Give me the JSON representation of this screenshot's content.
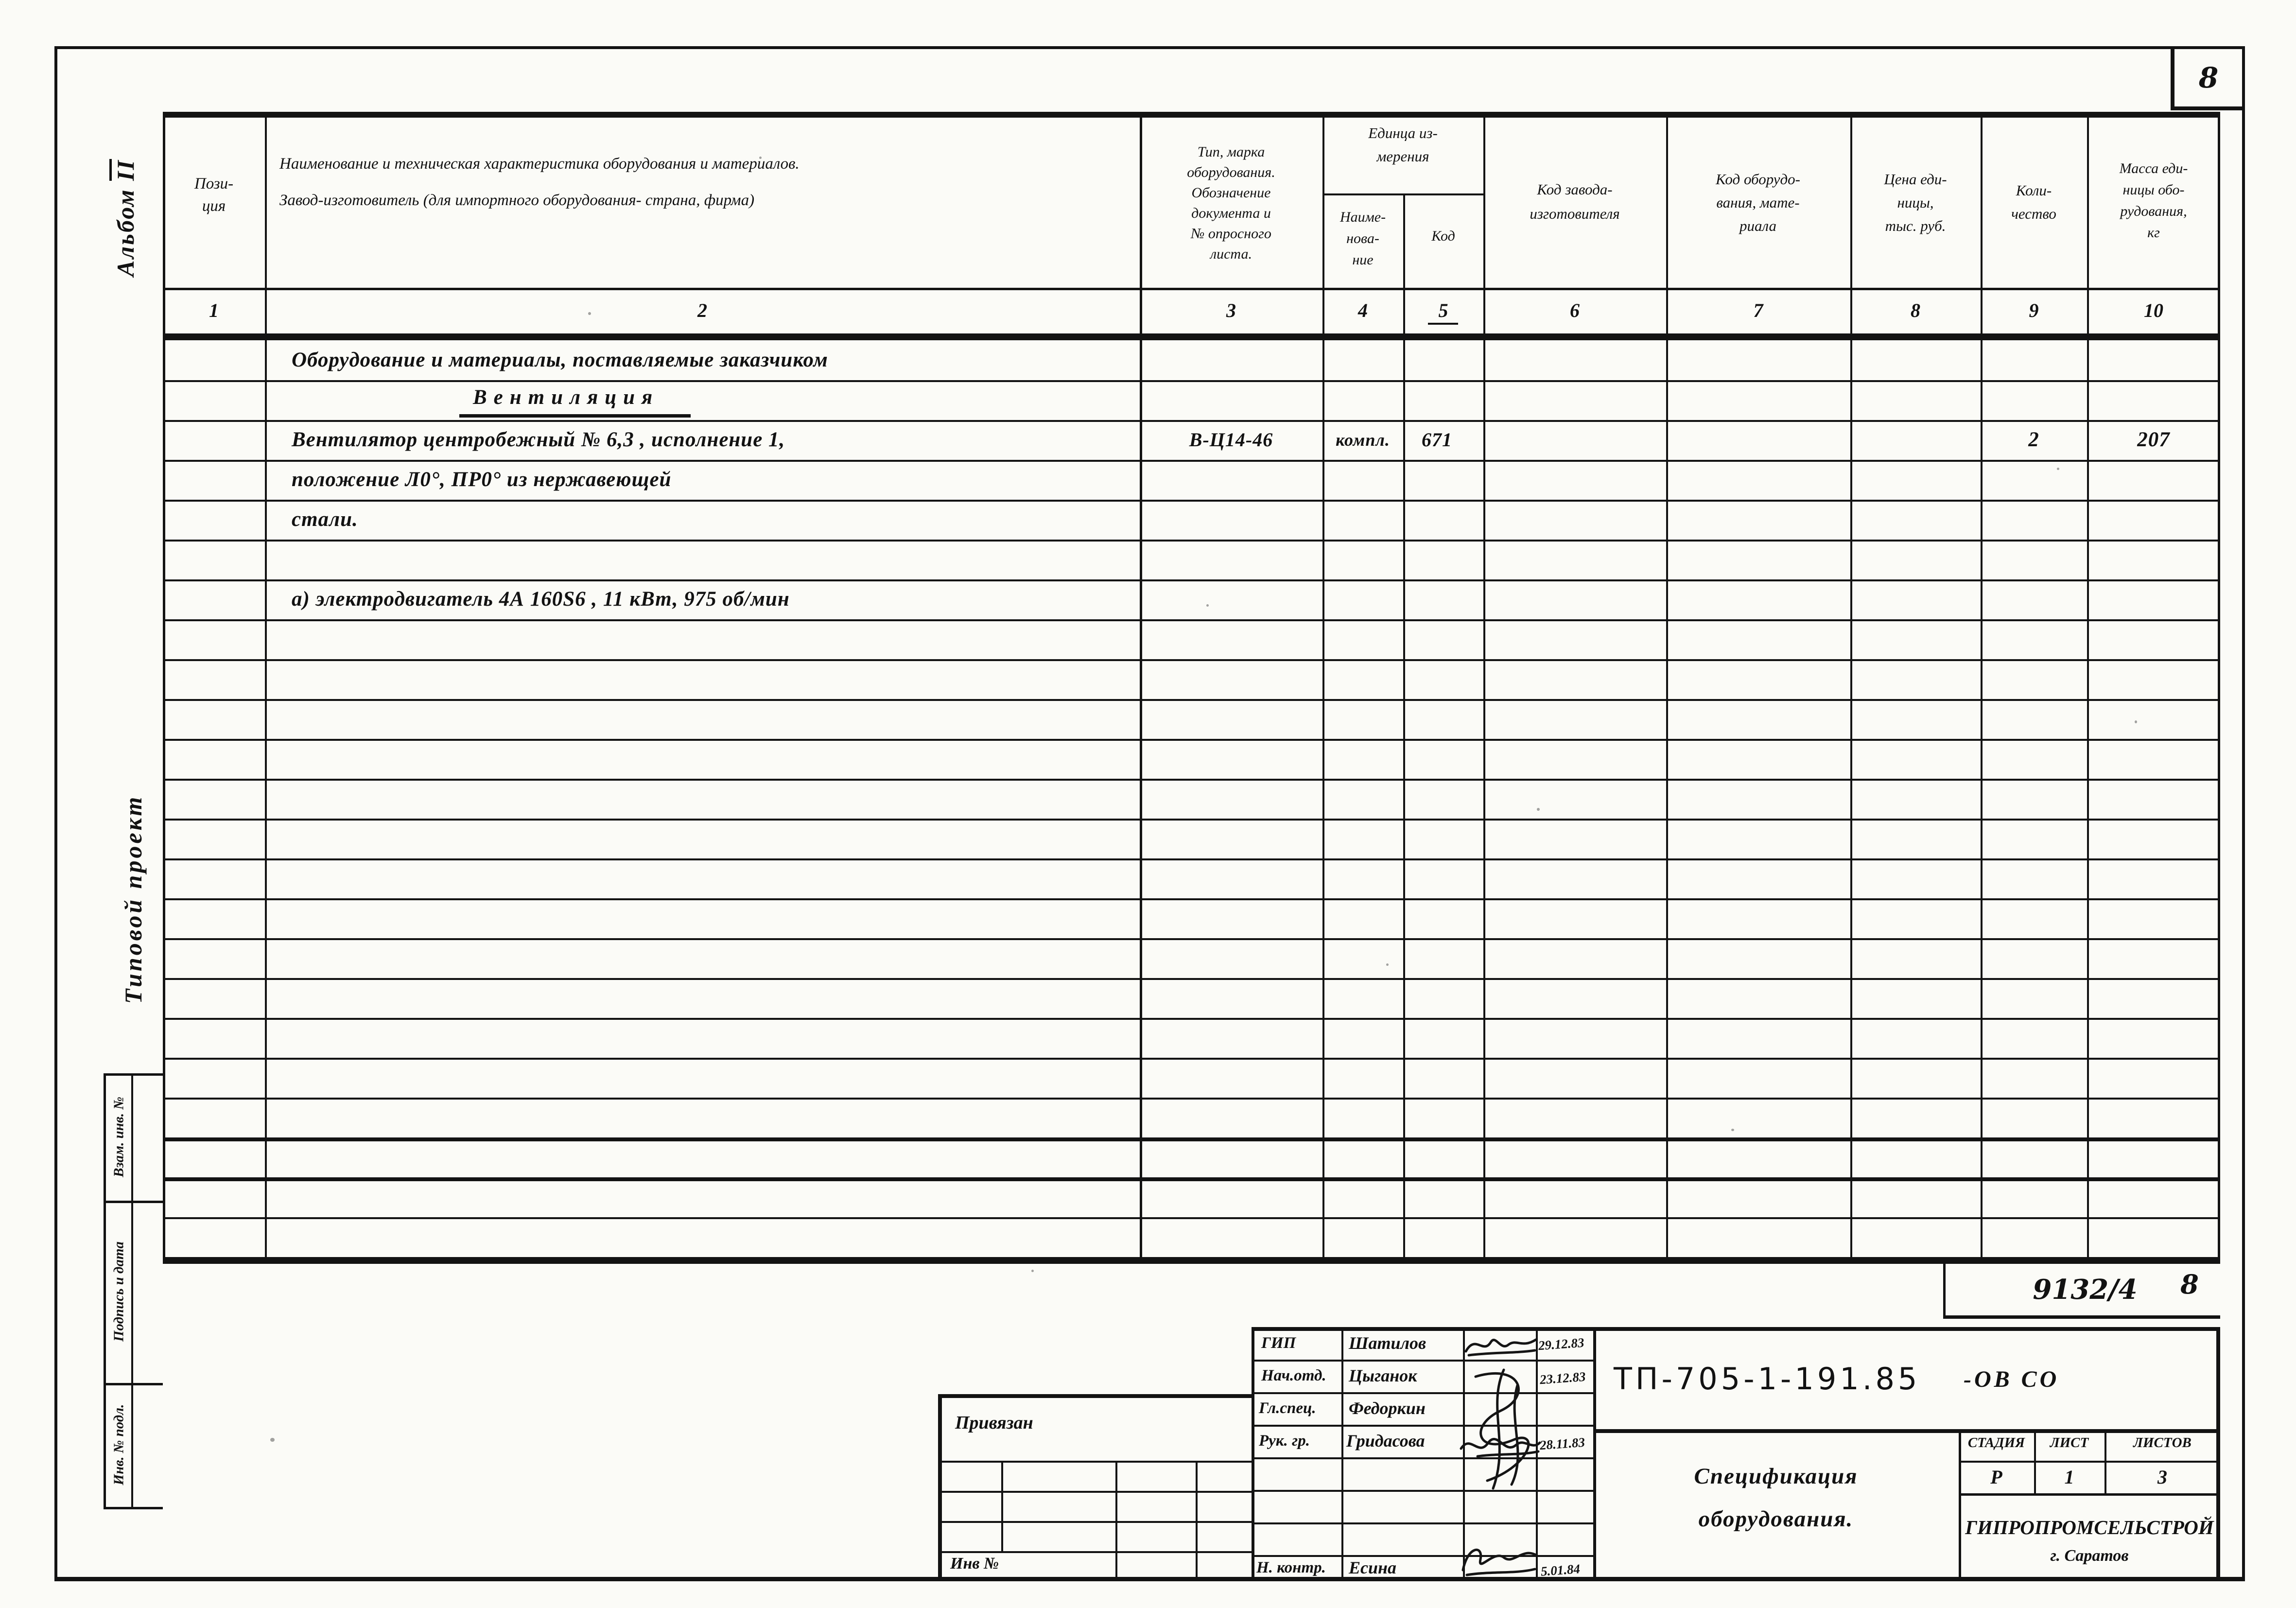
{
  "page": {
    "corner_number": "8",
    "hw_number": "9132/4",
    "hw_sheet": "8"
  },
  "side_labels": {
    "album_word": "Альбом",
    "album_number": "II",
    "project": "Типовой проект",
    "box1": "Взам. инв. №",
    "box2": "Подпись и дата",
    "box3": "Инв. № подл."
  },
  "table": {
    "headers": {
      "c1": "Пози-\nция",
      "c2": "Наименование и техническая характеристика оборудования и материалов.\nЗавод-изготовитель (для импортного оборудования- страна, фирма)",
      "c3": "Тип, марка\nоборудования.\nОбозначение\nдокумента и\n№ опросного\nлиста.",
      "c45": "Единца из-\nмерения",
      "c4": "Наиме-\nнова-\nние",
      "c5": "Код",
      "c6": "Код завода-\nизготовителя",
      "c7": "Код оборудо-\nвания, мате-\nриала",
      "c8": "Цена еди-\nницы,\nтыс. руб.",
      "c9": "Коли-\nчество",
      "c10": "Масса еди-\nницы обо-\nрудования,\nкг"
    },
    "numbers": [
      "1",
      "2",
      "3",
      "4",
      "5",
      "6",
      "7",
      "8",
      "9",
      "10"
    ],
    "rows": {
      "r1": {
        "name": "Оборудование и материалы,  поставляемые заказчиком"
      },
      "r2": {
        "name": "Вентиляция"
      },
      "r3": {
        "name": "Вентилятор центробежный  № 6,3 , исполнение 1,",
        "type": "В-Ц14-46",
        "unit": "компл.",
        "unit_code": "671",
        "qty": "2",
        "mass": "207"
      },
      "r4": {
        "name": "положение Л0°,  ПР0°  из  нержавеющей"
      },
      "r5": {
        "name": "стали."
      },
      "r7": {
        "name": "а) электродвигатель  4А 160S6 , 11 кВт, 975 об/мин"
      }
    }
  },
  "stamp": {
    "privyazan": "Привязан",
    "inv_label": "Инв №",
    "rows": [
      {
        "role": "ГИП",
        "name": "Шатилов",
        "date": "29.12.83"
      },
      {
        "role": "Нач.отд.",
        "name": "Цыганок",
        "date": "23.12.83"
      },
      {
        "role": "Гл.спец.",
        "name": "Федоркин",
        "date": ""
      },
      {
        "role": "Рук. гр.",
        "name": "Гридасова",
        "date": "28.11.83"
      },
      {
        "role": "Н. контр.",
        "name": "Есина",
        "date": "5.01.84"
      }
    ],
    "doc_code": "ТП-705-1-191.85",
    "doc_suffix": "-ОВ СО",
    "title_line1": "Спецификация",
    "title_line2": "оборудования.",
    "stage_label": "СТАДИЯ",
    "sheet_label": "ЛИСТ",
    "sheets_label": "ЛИСТОВ",
    "stage": "Р",
    "sheet": "1",
    "sheets": "3",
    "org_line1": "ГИПРОПРОМСЕЛЬСТРОЙ",
    "org_line2": "г. Саратов"
  }
}
